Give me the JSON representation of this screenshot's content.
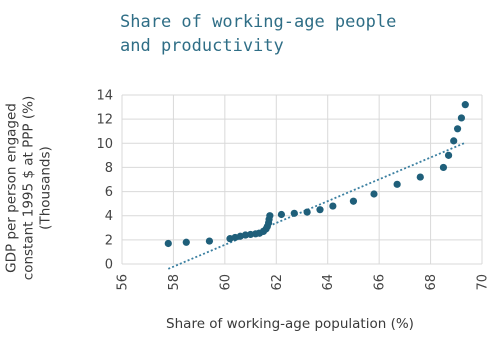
{
  "chart_data": {
    "type": "scatter",
    "title_lines": [
      "Share of working-age people",
      "and productivity"
    ],
    "xlabel": "Share of working-age population (%)",
    "ylabel_lines": [
      "GDP per person engaged",
      "constant 1995 $ at PPP (%)",
      "(Thousands)"
    ],
    "xlim": [
      56,
      70
    ],
    "ylim": [
      0,
      14
    ],
    "x_ticks": [
      "56",
      "58",
      "60",
      "62",
      "64",
      "66",
      "68",
      "70"
    ],
    "y_ticks": [
      "0",
      "2",
      "4",
      "6",
      "8",
      "10",
      "12",
      "14"
    ],
    "grid": true,
    "points": [
      {
        "x": 57.8,
        "y": 1.7
      },
      {
        "x": 58.5,
        "y": 1.8
      },
      {
        "x": 59.4,
        "y": 1.9
      },
      {
        "x": 60.2,
        "y": 2.1
      },
      {
        "x": 60.4,
        "y": 2.2
      },
      {
        "x": 60.6,
        "y": 2.3
      },
      {
        "x": 60.8,
        "y": 2.4
      },
      {
        "x": 61.0,
        "y": 2.45
      },
      {
        "x": 61.2,
        "y": 2.5
      },
      {
        "x": 61.35,
        "y": 2.55
      },
      {
        "x": 61.5,
        "y": 2.7
      },
      {
        "x": 61.6,
        "y": 2.9
      },
      {
        "x": 61.65,
        "y": 3.1
      },
      {
        "x": 61.7,
        "y": 3.4
      },
      {
        "x": 61.72,
        "y": 3.7
      },
      {
        "x": 61.75,
        "y": 4.0
      },
      {
        "x": 62.2,
        "y": 4.1
      },
      {
        "x": 62.7,
        "y": 4.2
      },
      {
        "x": 63.2,
        "y": 4.3
      },
      {
        "x": 63.7,
        "y": 4.5
      },
      {
        "x": 64.2,
        "y": 4.8
      },
      {
        "x": 65.0,
        "y": 5.2
      },
      {
        "x": 65.8,
        "y": 5.8
      },
      {
        "x": 66.7,
        "y": 6.6
      },
      {
        "x": 67.6,
        "y": 7.2
      },
      {
        "x": 68.5,
        "y": 8.0
      },
      {
        "x": 68.7,
        "y": 9.0
      },
      {
        "x": 68.9,
        "y": 10.2
      },
      {
        "x": 69.05,
        "y": 11.2
      },
      {
        "x": 69.2,
        "y": 12.1
      },
      {
        "x": 69.35,
        "y": 13.2
      }
    ],
    "trendline": {
      "x": [
        57.8,
        69.3
      ],
      "y": [
        -0.4,
        10.0
      ],
      "style": "dotted"
    },
    "colors": {
      "points": "#1f5f7a",
      "trendline": "#3a7fa0",
      "grid": "#d9d9d9",
      "title": "#2f6e86"
    }
  }
}
